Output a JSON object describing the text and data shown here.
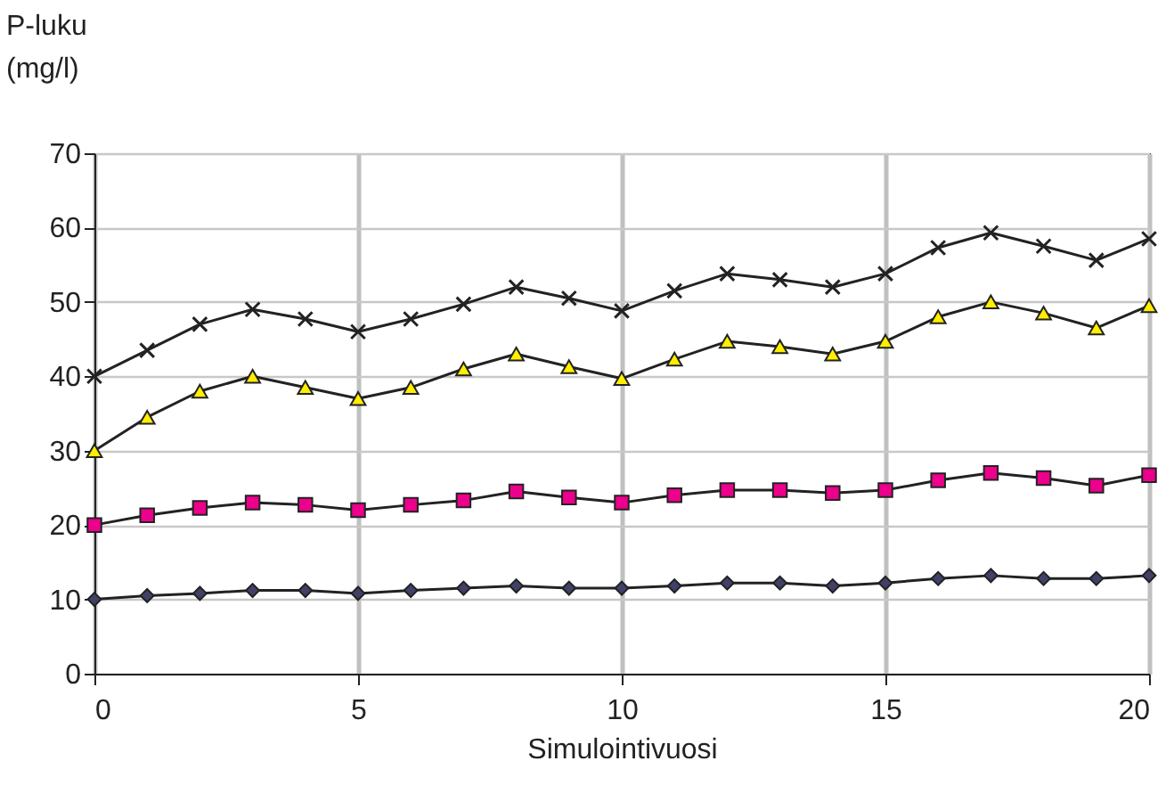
{
  "chart_data": {
    "type": "line",
    "xlabel": "Simulointivuosi",
    "ylabel": "P-luku\n(mg/l)",
    "x": [
      0,
      1,
      2,
      3,
      4,
      5,
      6,
      7,
      8,
      9,
      10,
      11,
      12,
      13,
      14,
      15,
      16,
      17,
      18,
      19,
      20
    ],
    "xlim": [
      0,
      20
    ],
    "xticks": [
      0,
      5,
      10,
      15,
      20
    ],
    "ylim": [
      0,
      70
    ],
    "yticks": [
      0,
      10,
      20,
      30,
      40,
      50,
      60,
      70
    ],
    "grid": true,
    "legend": false,
    "series": [
      {
        "color": "#222222",
        "marker": "cross",
        "values": [
          40,
          43.5,
          47,
          49,
          47.7,
          46,
          47.7,
          49.7,
          52,
          50.5,
          48.8,
          51.5,
          53.8,
          53,
          52,
          53.8,
          57.3,
          59.3,
          57.5,
          55.6,
          58.5
        ]
      },
      {
        "color": "#ffee00",
        "marker": "triangle",
        "values": [
          30,
          34.5,
          38,
          40,
          38.5,
          37,
          38.5,
          41,
          43,
          41.3,
          39.7,
          42.3,
          44.7,
          44,
          43,
          44.7,
          48,
          50,
          48.5,
          46.5,
          49.5
        ]
      },
      {
        "color": "#ec008c",
        "marker": "square",
        "values": [
          20,
          21.3,
          22.3,
          23,
          22.7,
          22,
          22.7,
          23.3,
          24.5,
          23.7,
          23,
          24,
          24.7,
          24.7,
          24.3,
          24.7,
          26,
          27,
          26.3,
          25.3,
          26.7
        ]
      },
      {
        "color": "#404068",
        "marker": "diamond",
        "values": [
          10,
          10.5,
          10.8,
          11.2,
          11.2,
          10.8,
          11.2,
          11.5,
          11.8,
          11.5,
          11.5,
          11.8,
          12.2,
          12.2,
          11.8,
          12.2,
          12.8,
          13.2,
          12.8,
          12.8,
          13.2
        ]
      }
    ]
  }
}
